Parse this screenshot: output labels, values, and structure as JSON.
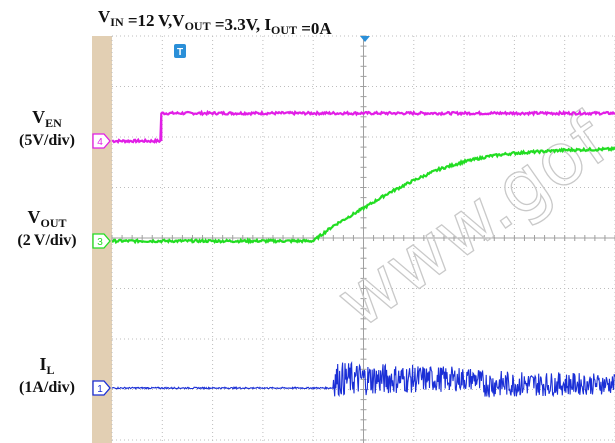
{
  "chart_data": {
    "type": "line",
    "title": {
      "parts": [
        {
          "text": "V",
          "sub": "IN"
        },
        {
          "text": " =12 V,V",
          "sub": "OUT"
        },
        {
          "text": " =3.3V, I",
          "sub": "OUT"
        },
        {
          "text": " =0A",
          "sub": ""
        }
      ]
    },
    "grid": true,
    "x_divisions": 10,
    "y_divisions": 8,
    "trigger_marker": "T",
    "series": [
      {
        "channel": "4",
        "label_main": "V",
        "label_sub": "EN",
        "scale": "(5V/div)",
        "color": "#e11ee6",
        "x": [
          0,
          0.98,
          0.98,
          10
        ],
        "y": [
          0,
          0,
          0.55,
          0.55
        ]
      },
      {
        "channel": "3",
        "label_main": "V",
        "label_sub": "OUT",
        "scale": "(2 V/div)",
        "color": "#22dd22",
        "x": [
          0,
          1.0,
          2.0,
          3.0,
          4.0,
          4.4,
          5.0,
          5.5,
          6.0,
          6.5,
          7.0,
          7.5,
          8.0,
          8.5,
          9.0,
          9.5,
          10
        ],
        "y": [
          0,
          0,
          0,
          0,
          0,
          0.3,
          0.65,
          0.95,
          1.2,
          1.42,
          1.57,
          1.68,
          1.74,
          1.77,
          1.8,
          1.81,
          1.82
        ]
      },
      {
        "channel": "1",
        "label_main": "I",
        "label_sub": "L",
        "scale": "(1A/div)",
        "color": "#1a2fd6",
        "x": [
          0,
          4.4,
          4.4,
          7.3,
          7.3,
          10
        ],
        "y": [
          0,
          0,
          0.18,
          0.18,
          0.08,
          0.08
        ],
        "ripple_pp_div": [
          0.0,
          0.7,
          0.55
        ]
      }
    ]
  }
}
